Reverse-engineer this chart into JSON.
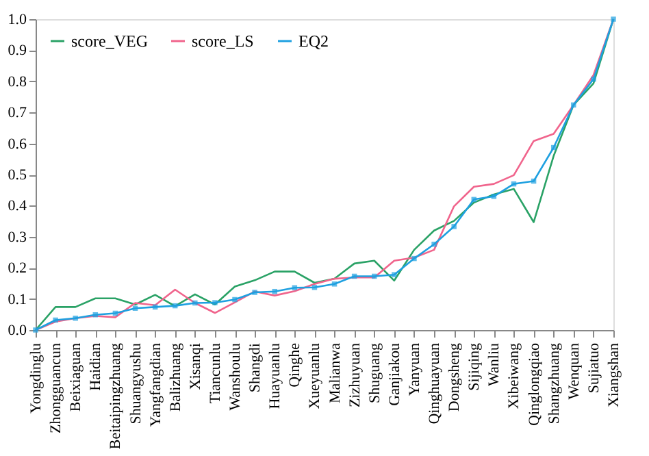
{
  "chart_data": {
    "type": "line",
    "categories": [
      "Yongdinglu",
      "Zhongguancun",
      "Beixiaguan",
      "Haidian",
      "Beitaipingzhuang",
      "Shuangyushu",
      "Yangfangdian",
      "Balizhuang",
      "Xisanqi",
      "Tiancunlu",
      "Wanshoulu",
      "Shangdi",
      "Huayuanlu",
      "Qinghe",
      "Xueyuanlu",
      "Malianwa",
      "Zizhuyuan",
      "Shuguang",
      "Ganjiakou",
      "Yanyuan",
      "Qinghuayuan",
      "Dongsheng",
      "Sijiqing",
      "Wanliu",
      "Xibeiwang",
      "Qinglongqiao",
      "Shangzhuang",
      "Wenquan",
      "Sujiatuo",
      "Xiangshan"
    ],
    "series": [
      {
        "name": "score_VEG",
        "color": "#2aa266",
        "marker": "none",
        "values": [
          0,
          0.074,
          0.074,
          0.102,
          0.102,
          0.082,
          0.113,
          0.077,
          0.115,
          0.082,
          0.14,
          0.16,
          0.188,
          0.188,
          0.152,
          0.165,
          0.214,
          0.223,
          0.159,
          0.258,
          0.32,
          0.351,
          0.41,
          0.436,
          0.454,
          0.347,
          0.56,
          0.724,
          0.793,
          1.0
        ]
      },
      {
        "name": "score_LS",
        "color": "#f0648c",
        "marker": "none",
        "values": [
          0,
          0.027,
          0.038,
          0.045,
          0.041,
          0.087,
          0.08,
          0.13,
          0.087,
          0.055,
          0.089,
          0.124,
          0.111,
          0.125,
          0.148,
          0.165,
          0.169,
          0.169,
          0.223,
          0.233,
          0.258,
          0.398,
          0.461,
          0.47,
          0.498,
          0.608,
          0.631,
          0.724,
          0.82,
          1.0
        ]
      },
      {
        "name": "EQ2",
        "color": "#1ea0e0",
        "marker": "square",
        "values": [
          0,
          0.032,
          0.038,
          0.049,
          0.054,
          0.07,
          0.074,
          0.078,
          0.087,
          0.088,
          0.098,
          0.121,
          0.124,
          0.136,
          0.137,
          0.148,
          0.173,
          0.173,
          0.178,
          0.23,
          0.276,
          0.333,
          0.42,
          0.43,
          0.47,
          0.479,
          0.587,
          0.724,
          0.807,
          1.0
        ]
      }
    ],
    "ylim": [
      0,
      1.0
    ],
    "yticks": [
      {
        "value": 0,
        "label": "0.0"
      },
      {
        "value": 0.1,
        "label": "0.1"
      },
      {
        "value": 0.2,
        "label": "0.2"
      },
      {
        "value": 0.3,
        "label": "0.3"
      },
      {
        "value": 0.4,
        "label": "0.4"
      },
      {
        "value": 0.5,
        "label": "0.5"
      },
      {
        "value": 0.6,
        "label": "0.6"
      },
      {
        "value": 0.7,
        "label": "0.7"
      },
      {
        "value": 0.8,
        "label": "0.8"
      },
      {
        "value": 0.9,
        "label": "0.9"
      },
      {
        "value": 1.0,
        "label": "1.0"
      }
    ],
    "grid": false,
    "legend": "top left",
    "line_style": "solid"
  }
}
